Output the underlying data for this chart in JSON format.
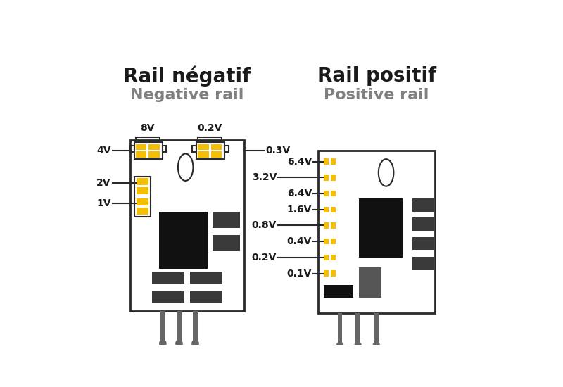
{
  "bg_color": "#ffffff",
  "left_title1": "Rail négatif",
  "left_title2": "Negative rail",
  "right_title1": "Rail positif",
  "right_title2": "Positive rail",
  "title1_fontsize": 20,
  "title2_fontsize": 16,
  "title1_color": "#1a1a1a",
  "title2_color": "#808080",
  "board_color": "#2a2a2a",
  "board_lw": 2.0,
  "yellow_color": "#F5BE00",
  "black_comp": "#111111",
  "dark_gray_comp": "#3a3a3a",
  "gray_comp": "#666666",
  "pin_color": "#666666",
  "label_fontsize": 10,
  "label_fontweight": "bold"
}
